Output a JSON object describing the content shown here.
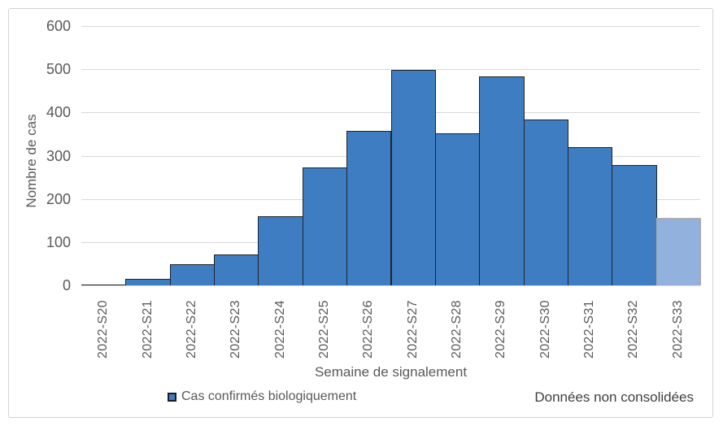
{
  "chart_data": {
    "type": "bar",
    "title": "",
    "categories": [
      "2022-S20",
      "2022-S21",
      "2022-S22",
      "2022-S23",
      "2022-S24",
      "2022-S25",
      "2022-S26",
      "2022-S27",
      "2022-S28",
      "2022-S29",
      "2022-S30",
      "2022-S31",
      "2022-S32",
      "2022-S33"
    ],
    "series": [
      {
        "name": "Cas confirmés biologiquement",
        "values": [
          2,
          15,
          49,
          71,
          159,
          273,
          358,
          499,
          352,
          484,
          383,
          320,
          278,
          156
        ]
      }
    ],
    "xlabel": "Semaine de signalement",
    "ylabel": "Nombre de cas",
    "ylim": [
      0,
      600
    ],
    "ytick_step": 100,
    "grid": true,
    "bar_gap": 0,
    "legend_position": "bottom-left",
    "non_consolidated_category": "2022-S33",
    "note": "Données non consolidées"
  },
  "legend": {
    "label": "Cas confirmés biologiquement"
  },
  "note": {
    "text": "Données non consolidées"
  },
  "colors": {
    "bar_fill": "#3E7DC1",
    "bar_border": "#20242B",
    "bar_fill_light": "#92B1DC",
    "bar_border_light": "#A9ACB2",
    "gridline": "#D9D9D9",
    "axis_text": "#595959",
    "note_text": "#3F3F3F",
    "figure_border": "#D2D2D2"
  }
}
